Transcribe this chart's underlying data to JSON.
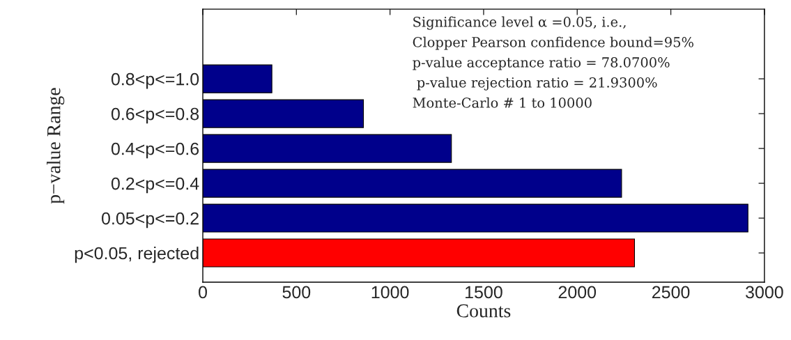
{
  "chart_data": {
    "type": "bar",
    "orientation": "horizontal",
    "xlabel": "Counts",
    "ylabel": "p−value Range",
    "categories": [
      "0.8<p<=1.0",
      "0.6<p<=0.8",
      "0.4<p<=0.6",
      "0.2<p<=0.4",
      "0.05<p<=0.2",
      "p<0.05, rejected"
    ],
    "values": [
      369,
      858,
      1328,
      2237,
      2912,
      2306
    ],
    "colors": [
      "#00008b",
      "#00008b",
      "#00008b",
      "#00008b",
      "#00008b",
      "#ff0000"
    ],
    "xlim": [
      0,
      3000
    ],
    "xticks": [
      0,
      500,
      1000,
      1500,
      2000,
      2500,
      3000
    ],
    "grid": false,
    "legend": false,
    "annotations": [
      "Significance level α =0.05, i.e.,",
      "Clopper Pearson confidence bound=95%",
      "p-value acceptance ratio = 78.0700%",
      " p-value rejection ratio = 21.9300%",
      "Monte-Carlo # 1 to 10000"
    ]
  }
}
